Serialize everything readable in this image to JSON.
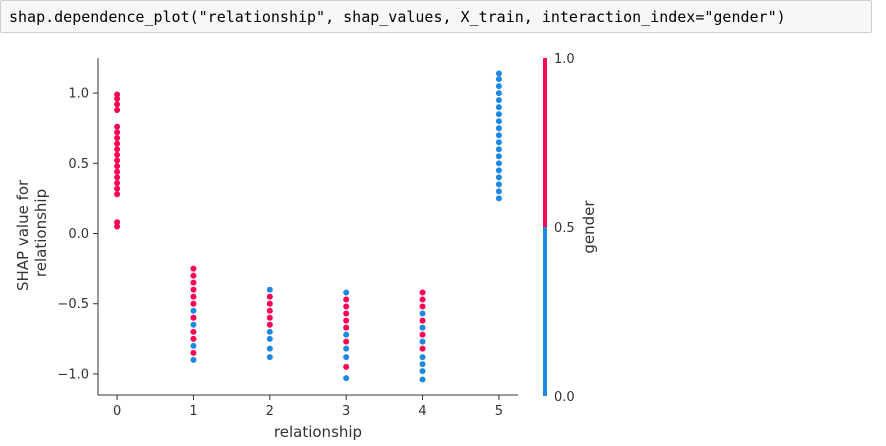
{
  "code_cell": {
    "source": "shap.dependence_plot(\"relationship\", shap_values, X_train, interaction_index=\"gender\")"
  },
  "colors": {
    "low": "#1e88e5",
    "high": "#ff0052",
    "axis": "#333333",
    "text": "#333333"
  },
  "chart_data": {
    "type": "scatter",
    "xlabel": "relationship",
    "ylabel_lines": [
      "SHAP value for",
      "relationship"
    ],
    "xlim": [
      -0.25,
      5.25
    ],
    "ylim": [
      -1.15,
      1.25
    ],
    "xticks": [
      0,
      1,
      2,
      3,
      4,
      5
    ],
    "yticks": [
      -1.0,
      -0.5,
      0.0,
      0.5,
      1.0
    ],
    "xtick_labels": [
      "0",
      "1",
      "2",
      "3",
      "4",
      "5"
    ],
    "ytick_labels": [
      "−1.0",
      "−0.5",
      "0.0",
      "0.5",
      "1.0"
    ],
    "grid": false,
    "colorbar": {
      "label": "gender",
      "range": [
        0.0,
        1.0
      ],
      "ticks": [
        0.0,
        0.5,
        1.0
      ],
      "tick_labels": [
        "0.0",
        "0.5",
        "1.0"
      ]
    },
    "points": [
      {
        "x": 0,
        "y": 0.05,
        "gender": 1
      },
      {
        "x": 0,
        "y": 0.08,
        "gender": 1
      },
      {
        "x": 0,
        "y": 0.28,
        "gender": 1
      },
      {
        "x": 0,
        "y": 0.32,
        "gender": 1
      },
      {
        "x": 0,
        "y": 0.36,
        "gender": 1
      },
      {
        "x": 0,
        "y": 0.4,
        "gender": 1
      },
      {
        "x": 0,
        "y": 0.44,
        "gender": 1
      },
      {
        "x": 0,
        "y": 0.48,
        "gender": 1
      },
      {
        "x": 0,
        "y": 0.52,
        "gender": 1
      },
      {
        "x": 0,
        "y": 0.56,
        "gender": 1
      },
      {
        "x": 0,
        "y": 0.6,
        "gender": 1
      },
      {
        "x": 0,
        "y": 0.64,
        "gender": 1
      },
      {
        "x": 0,
        "y": 0.68,
        "gender": 1
      },
      {
        "x": 0,
        "y": 0.72,
        "gender": 1
      },
      {
        "x": 0,
        "y": 0.76,
        "gender": 1
      },
      {
        "x": 0,
        "y": 0.88,
        "gender": 1
      },
      {
        "x": 0,
        "y": 0.92,
        "gender": 1
      },
      {
        "x": 0,
        "y": 0.96,
        "gender": 1
      },
      {
        "x": 0,
        "y": 0.99,
        "gender": 1
      },
      {
        "x": 1,
        "y": -0.25,
        "gender": 1
      },
      {
        "x": 1,
        "y": -0.3,
        "gender": 1
      },
      {
        "x": 1,
        "y": -0.35,
        "gender": 1
      },
      {
        "x": 1,
        "y": -0.4,
        "gender": 1
      },
      {
        "x": 1,
        "y": -0.45,
        "gender": 1
      },
      {
        "x": 1,
        "y": -0.5,
        "gender": 1
      },
      {
        "x": 1,
        "y": -0.55,
        "gender": 0
      },
      {
        "x": 1,
        "y": -0.6,
        "gender": 1
      },
      {
        "x": 1,
        "y": -0.65,
        "gender": 0
      },
      {
        "x": 1,
        "y": -0.7,
        "gender": 1
      },
      {
        "x": 1,
        "y": -0.75,
        "gender": 1
      },
      {
        "x": 1,
        "y": -0.8,
        "gender": 0
      },
      {
        "x": 1,
        "y": -0.85,
        "gender": 1
      },
      {
        "x": 1,
        "y": -0.9,
        "gender": 0
      },
      {
        "x": 2,
        "y": -0.4,
        "gender": 0
      },
      {
        "x": 2,
        "y": -0.45,
        "gender": 1
      },
      {
        "x": 2,
        "y": -0.5,
        "gender": 1
      },
      {
        "x": 2,
        "y": -0.55,
        "gender": 1
      },
      {
        "x": 2,
        "y": -0.6,
        "gender": 1
      },
      {
        "x": 2,
        "y": -0.65,
        "gender": 1
      },
      {
        "x": 2,
        "y": -0.7,
        "gender": 0
      },
      {
        "x": 2,
        "y": -0.75,
        "gender": 0
      },
      {
        "x": 2,
        "y": -0.82,
        "gender": 0
      },
      {
        "x": 2,
        "y": -0.88,
        "gender": 0
      },
      {
        "x": 3,
        "y": -0.42,
        "gender": 0
      },
      {
        "x": 3,
        "y": -0.47,
        "gender": 1
      },
      {
        "x": 3,
        "y": -0.52,
        "gender": 1
      },
      {
        "x": 3,
        "y": -0.57,
        "gender": 1
      },
      {
        "x": 3,
        "y": -0.62,
        "gender": 1
      },
      {
        "x": 3,
        "y": -0.67,
        "gender": 1
      },
      {
        "x": 3,
        "y": -0.72,
        "gender": 0
      },
      {
        "x": 3,
        "y": -0.77,
        "gender": 1
      },
      {
        "x": 3,
        "y": -0.82,
        "gender": 0
      },
      {
        "x": 3,
        "y": -0.88,
        "gender": 0
      },
      {
        "x": 3,
        "y": -0.95,
        "gender": 1
      },
      {
        "x": 3,
        "y": -1.03,
        "gender": 0
      },
      {
        "x": 4,
        "y": -0.42,
        "gender": 1
      },
      {
        "x": 4,
        "y": -0.47,
        "gender": 1
      },
      {
        "x": 4,
        "y": -0.52,
        "gender": 1
      },
      {
        "x": 4,
        "y": -0.57,
        "gender": 0
      },
      {
        "x": 4,
        "y": -0.62,
        "gender": 1
      },
      {
        "x": 4,
        "y": -0.67,
        "gender": 0
      },
      {
        "x": 4,
        "y": -0.72,
        "gender": 1
      },
      {
        "x": 4,
        "y": -0.77,
        "gender": 0
      },
      {
        "x": 4,
        "y": -0.82,
        "gender": 1
      },
      {
        "x": 4,
        "y": -0.88,
        "gender": 0
      },
      {
        "x": 4,
        "y": -0.93,
        "gender": 0
      },
      {
        "x": 4,
        "y": -0.98,
        "gender": 0
      },
      {
        "x": 4,
        "y": -1.04,
        "gender": 0
      },
      {
        "x": 5,
        "y": 0.25,
        "gender": 0
      },
      {
        "x": 5,
        "y": 0.3,
        "gender": 0
      },
      {
        "x": 5,
        "y": 0.35,
        "gender": 0
      },
      {
        "x": 5,
        "y": 0.4,
        "gender": 0
      },
      {
        "x": 5,
        "y": 0.45,
        "gender": 0
      },
      {
        "x": 5,
        "y": 0.5,
        "gender": 0
      },
      {
        "x": 5,
        "y": 0.55,
        "gender": 0
      },
      {
        "x": 5,
        "y": 0.6,
        "gender": 0
      },
      {
        "x": 5,
        "y": 0.65,
        "gender": 0
      },
      {
        "x": 5,
        "y": 0.7,
        "gender": 0
      },
      {
        "x": 5,
        "y": 0.75,
        "gender": 0
      },
      {
        "x": 5,
        "y": 0.8,
        "gender": 0
      },
      {
        "x": 5,
        "y": 0.85,
        "gender": 0
      },
      {
        "x": 5,
        "y": 0.9,
        "gender": 0
      },
      {
        "x": 5,
        "y": 0.95,
        "gender": 0
      },
      {
        "x": 5,
        "y": 1.0,
        "gender": 0
      },
      {
        "x": 5,
        "y": 1.05,
        "gender": 0
      },
      {
        "x": 5,
        "y": 1.1,
        "gender": 0
      },
      {
        "x": 5,
        "y": 1.14,
        "gender": 0
      }
    ]
  }
}
